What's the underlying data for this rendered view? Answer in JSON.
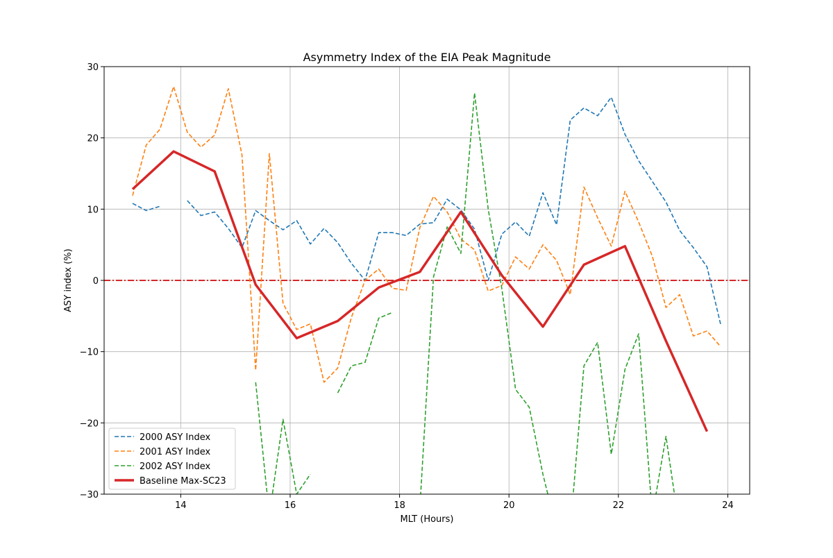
{
  "chart_data": {
    "type": "line",
    "title": "Asymmetry Index of the EIA Peak Magnitude",
    "xlabel": "MLT (Hours)",
    "ylabel": "ASY index (%)",
    "xlim": [
      12.6,
      24.4
    ],
    "ylim": [
      -30,
      30
    ],
    "xticks": [
      14,
      16,
      18,
      20,
      22,
      24
    ],
    "yticks": [
      -30,
      -20,
      -10,
      0,
      10,
      20,
      30
    ],
    "xtick_labels": [
      "14",
      "16",
      "18",
      "20",
      "22",
      "24"
    ],
    "ytick_labels": [
      "−30",
      "−20",
      "−10",
      "0",
      "10",
      "20",
      "30"
    ],
    "grid": true,
    "legend_position": "lower-left",
    "reference_line": {
      "y": 0,
      "color": "#d62728",
      "style": "dash-dot"
    },
    "series": [
      {
        "name": "2000 ASY Index",
        "color": "#1f77b4",
        "style": "dashed",
        "x": [
          13.12,
          13.37,
          13.62,
          13.87,
          14.12,
          14.37,
          14.62,
          14.87,
          15.12,
          15.37,
          15.62,
          15.87,
          16.12,
          16.37,
          16.62,
          16.87,
          17.12,
          17.37,
          17.62,
          17.87,
          18.12,
          18.37,
          18.62,
          18.87,
          19.12,
          19.37,
          19.62,
          19.87,
          20.12,
          20.37,
          20.62,
          20.87,
          21.12,
          21.37,
          21.62,
          21.87,
          22.12,
          22.37,
          22.62,
          22.87,
          23.12,
          23.37,
          23.62,
          23.87
        ],
        "y": [
          10.8,
          9.8,
          10.4,
          null,
          11.2,
          9.1,
          9.6,
          7.3,
          4.6,
          9.8,
          8.4,
          7.1,
          8.4,
          5.1,
          7.3,
          5.3,
          2.4,
          0.0,
          6.7,
          6.7,
          6.3,
          7.9,
          8.1,
          11.4,
          9.9,
          7.2,
          0.0,
          6.5,
          8.2,
          6.2,
          12.3,
          7.8,
          22.5,
          24.2,
          23.1,
          25.7,
          20.5,
          16.8,
          13.9,
          11.0,
          7.0,
          4.6,
          1.9,
          -6.2
        ]
      },
      {
        "name": "2001 ASY Index",
        "color": "#ff7f0e",
        "style": "dashed",
        "x": [
          13.12,
          13.37,
          13.62,
          13.87,
          14.12,
          14.37,
          14.62,
          14.87,
          15.12,
          15.37,
          15.62,
          15.87,
          16.12,
          16.37,
          16.62,
          16.87,
          17.12,
          17.37,
          17.62,
          17.87,
          18.12,
          18.37,
          18.62,
          18.87,
          19.12,
          19.37,
          19.62,
          19.87,
          20.12,
          20.37,
          20.62,
          20.87,
          21.12,
          21.37,
          21.62,
          21.87,
          22.12,
          22.37,
          22.62,
          22.87,
          23.12,
          23.37,
          23.62,
          23.87
        ],
        "y": [
          11.9,
          19.0,
          21.2,
          27.2,
          20.8,
          18.7,
          20.4,
          26.9,
          17.6,
          -12.6,
          17.8,
          -3.2,
          -6.9,
          -6.1,
          -14.3,
          -12.3,
          -5.2,
          0.0,
          1.6,
          -1.1,
          -1.4,
          7.4,
          11.8,
          9.6,
          5.8,
          4.3,
          -1.5,
          -0.7,
          3.3,
          1.6,
          5.0,
          2.8,
          -2.0,
          13.1,
          8.8,
          4.8,
          12.5,
          8.2,
          3.4,
          -3.8,
          -2.0,
          -7.8,
          -7.1,
          -9.3
        ]
      },
      {
        "name": "2002 ASY Index",
        "color": "#2ca02c",
        "style": "dashed",
        "x": [
          15.37,
          15.62,
          15.87,
          16.12,
          16.37,
          null,
          16.87,
          17.12,
          17.37,
          17.62,
          17.87,
          null,
          18.37,
          18.62,
          18.87,
          19.12,
          19.37,
          19.62,
          19.87,
          20.12,
          20.37,
          20.62,
          20.87,
          null,
          21.12,
          21.37,
          21.62,
          21.87,
          22.12,
          22.37,
          22.62,
          22.87,
          23.12
        ],
        "y": [
          -14.3,
          -33.0,
          -19.5,
          -30.0,
          -27.2,
          null,
          -15.8,
          -12.0,
          -11.5,
          -5.3,
          -4.5,
          null,
          -32.0,
          0.5,
          7.5,
          3.8,
          26.3,
          10.0,
          -1.2,
          -15.3,
          -17.8,
          -27.2,
          -35.0,
          null,
          -35.0,
          -12.0,
          -8.7,
          -24.4,
          -12.5,
          -7.5,
          -33.0,
          -21.9,
          -35.0
        ]
      },
      {
        "name": "Baseline Max-SC23",
        "color": "#d62728",
        "style": "solid",
        "x": [
          13.12,
          13.87,
          14.62,
          15.37,
          16.12,
          16.87,
          17.62,
          18.37,
          19.12,
          19.87,
          20.62,
          21.37,
          22.12,
          22.87,
          23.62
        ],
        "y": [
          12.8,
          18.1,
          15.3,
          -0.6,
          -8.1,
          -5.7,
          -1.0,
          1.2,
          9.6,
          0.7,
          -6.5,
          2.2,
          4.8,
          -8.5,
          -21.2
        ]
      }
    ]
  }
}
